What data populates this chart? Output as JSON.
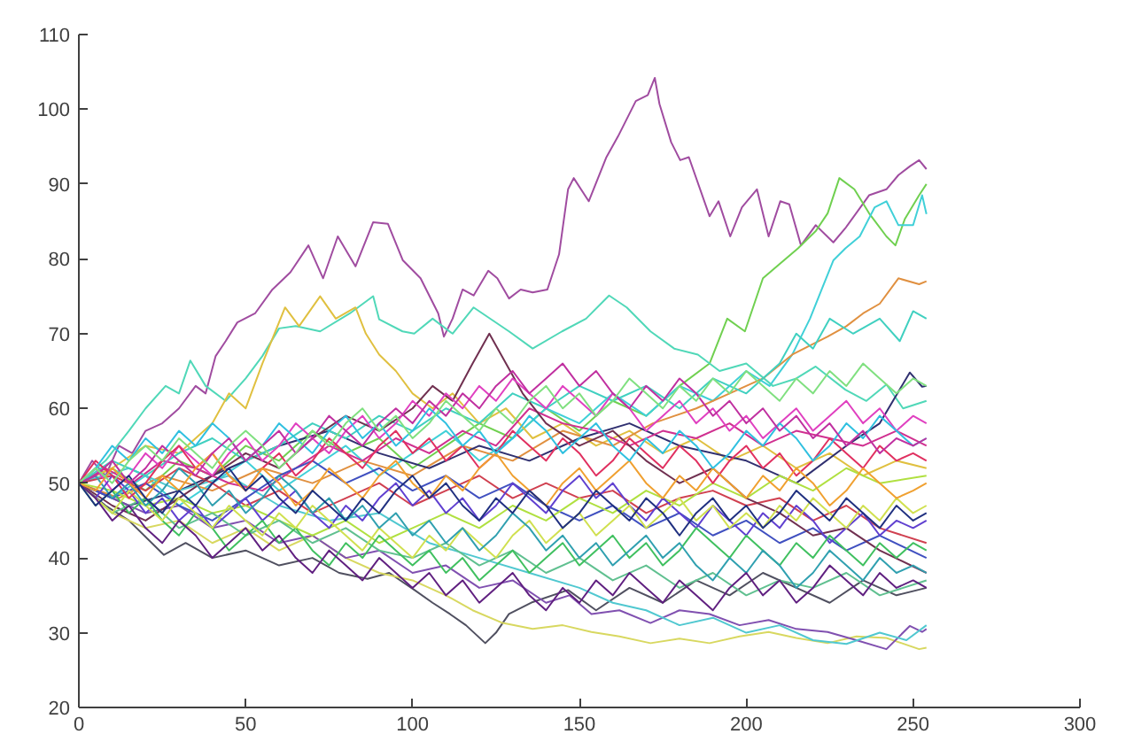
{
  "chart_data": {
    "type": "line",
    "xlim": [
      0,
      300
    ],
    "ylim": [
      20,
      110
    ],
    "xticks": [
      0,
      50,
      100,
      150,
      200,
      250,
      300
    ],
    "yticks": [
      20,
      30,
      40,
      50,
      60,
      70,
      80,
      90,
      100,
      110
    ],
    "x": [
      0,
      5,
      10,
      15,
      20,
      25,
      30,
      35,
      40,
      45,
      50,
      55,
      60,
      65,
      70,
      75,
      80,
      85,
      90,
      95,
      100,
      105,
      110,
      115,
      120,
      125,
      130,
      135,
      140,
      145,
      150,
      155,
      160,
      165,
      170,
      175,
      180,
      185,
      190,
      195,
      200,
      205,
      210,
      215,
      220,
      225,
      230,
      235,
      240,
      245,
      250,
      254
    ],
    "series": [
      {
        "color": "#a04ca0",
        "x": [
          0,
          4,
          8,
          12,
          16,
          20,
          25,
          30,
          35,
          38,
          41,
          44,
          47.5,
          52.8,
          58,
          63.4,
          68.8,
          73.2,
          77.6,
          82.9,
          88.2,
          92.6,
          97.1,
          102.4,
          107.7,
          109.4,
          112,
          115,
          118.3,
          122.7,
          125.4,
          128.9,
          132.4,
          136,
          140.4,
          143.9,
          146.6,
          148.3,
          152.8,
          158.1,
          161.6,
          166.9,
          170.5,
          172.6,
          174,
          177.5,
          180.2,
          182.8,
          189,
          191.7,
          195.2,
          198.7,
          203.2,
          206.7,
          210.2,
          212.9,
          216.4,
          220.8,
          226.1,
          229.7,
          236.8,
          242,
          245.6,
          249.1,
          251.8,
          254
        ],
        "values": [
          50,
          53,
          51,
          55,
          54,
          57,
          58,
          60,
          63,
          62,
          67,
          69,
          71.5,
          72.7,
          75.9,
          78.2,
          81.8,
          77.4,
          83,
          79,
          84.9,
          84.7,
          79.8,
          77.4,
          72.7,
          69.6,
          72,
          75.9,
          75.1,
          78.4,
          77.4,
          74.7,
          75.9,
          75.5,
          75.9,
          80.6,
          89.3,
          90.8,
          87.7,
          93.6,
          96.4,
          101.1,
          101.9,
          104.2,
          100.7,
          95.6,
          93.2,
          93.6,
          85.7,
          87.7,
          83,
          86.9,
          89.3,
          83,
          87.7,
          87.3,
          81.8,
          84.5,
          82.2,
          84.1,
          88.5,
          89.3,
          91.2,
          92.4,
          93.2,
          92
        ]
      },
      {
        "color": "#70d050",
        "x": [
          0,
          10,
          20,
          30,
          40,
          50,
          60,
          70,
          80,
          90,
          100,
          110,
          120,
          130,
          140,
          150,
          160,
          170,
          180,
          189,
          194.3,
          199.6,
          205,
          210.2,
          215.5,
          220.8,
          224.4,
          227.9,
          232.4,
          236.8,
          242,
          244.7,
          247.5,
          251.8,
          254
        ],
        "values": [
          50,
          52,
          49,
          53,
          51,
          55,
          53,
          57,
          54,
          56,
          52,
          55,
          58,
          56,
          60,
          57,
          61,
          59,
          63,
          66,
          72,
          70.3,
          77.4,
          79.4,
          81.4,
          83.7,
          86.1,
          90.8,
          89.3,
          86.1,
          83,
          81.8,
          85.3,
          88.5,
          90
        ]
      },
      {
        "color": "#40d0d8",
        "x": [
          0,
          10,
          20,
          30,
          40,
          50,
          60,
          70,
          80,
          90,
          100,
          110,
          120,
          130,
          140,
          150,
          160,
          170,
          180,
          190,
          200,
          207,
          213.8,
          219.1,
          222.6,
          226.1,
          229.7,
          234,
          238.5,
          242,
          245.6,
          250,
          252.7,
          254
        ],
        "values": [
          50,
          48,
          51,
          47,
          50,
          53,
          49,
          52,
          55,
          51,
          54,
          57,
          53,
          56,
          60,
          58,
          62,
          59,
          63,
          61,
          65,
          63,
          67.2,
          72,
          75.9,
          79.8,
          81.4,
          83,
          86.9,
          87.7,
          84.5,
          84.5,
          88.5,
          86
        ]
      },
      {
        "color": "#50d8b8",
        "x": [
          0,
          8,
          15,
          20,
          26,
          30,
          33.4,
          38,
          44,
          50,
          55,
          60,
          65,
          72.3,
          81.2,
          88.2,
          90,
          97,
          100.5,
          106,
          112,
          118.3,
          123.6,
          128.9,
          136,
          144.8,
          152,
          158.9,
          164.2,
          171.3,
          178.4,
          185.5,
          192,
          200,
          208,
          215,
          220.8,
          229.7,
          236,
          242,
          247,
          254
        ],
        "values": [
          50,
          53,
          57,
          60,
          63,
          62,
          66.4,
          63,
          61,
          64,
          67,
          70.7,
          71,
          70.3,
          72.7,
          75,
          71.9,
          70.3,
          70,
          72,
          70,
          73.5,
          71.9,
          70.3,
          68,
          70.3,
          72,
          75.1,
          73.5,
          70.3,
          68,
          67.2,
          65,
          66,
          63,
          64,
          65.6,
          62.5,
          61,
          63.2,
          60,
          61
        ]
      },
      {
        "color": "#e0c040",
        "x": [
          0,
          10,
          20,
          30,
          40,
          45,
          50,
          55,
          61.8,
          66,
          72.3,
          77,
          82.9,
          86,
          90,
          95,
          100,
          106,
          112,
          120,
          128,
          136,
          145,
          155,
          165,
          175,
          185,
          195,
          205,
          215,
          225,
          235,
          245,
          254
        ],
        "values": [
          50,
          52,
          55,
          54,
          58,
          62,
          60,
          66,
          73.5,
          71,
          75,
          72,
          73.5,
          70,
          67.2,
          65,
          62,
          60,
          62,
          58,
          60,
          56,
          58,
          55,
          57,
          54,
          56,
          53,
          55,
          52,
          54,
          51,
          53,
          52
        ]
      },
      {
        "color": "#e09040",
        "x": [
          0,
          12,
          25,
          40,
          55,
          70,
          85,
          100,
          115,
          130,
          145,
          160,
          172,
          185,
          195,
          205,
          213.8,
          224.4,
          230,
          235,
          240,
          245.6,
          251.8,
          254
        ],
        "values": [
          50,
          48,
          51,
          49,
          52,
          50,
          53,
          51,
          55,
          53,
          57,
          55,
          58,
          60,
          62,
          64,
          67.2,
          69.6,
          71,
          72.7,
          74,
          77.4,
          76.6,
          77
        ]
      },
      {
        "color": "#303070",
        "x": [
          0,
          15,
          30,
          45,
          60,
          75,
          90,
          105,
          120,
          135,
          150,
          165,
          180,
          200,
          215,
          230,
          240,
          249,
          252.7,
          254
        ],
        "values": [
          50,
          47,
          49,
          52,
          55,
          57,
          54,
          52,
          55,
          53,
          56,
          58,
          55,
          53,
          50,
          55,
          58,
          64.8,
          62.9,
          63
        ]
      },
      {
        "color": "#505060",
        "x": [
          0,
          8,
          15,
          25.5,
          32,
          40,
          50,
          60,
          70,
          78,
          86.5,
          93,
          100.6,
          106,
          111.2,
          116,
          121.8,
          125,
          128.9,
          136,
          146.6,
          155,
          165,
          175,
          185,
          195,
          205,
          215,
          225,
          235,
          245,
          254
        ],
        "values": [
          50,
          47,
          45,
          40.4,
          42,
          40,
          41,
          39,
          40,
          38,
          37.2,
          38,
          35.7,
          34,
          32.5,
          31,
          28.6,
          30,
          32.5,
          34.1,
          35.7,
          33,
          36,
          34,
          37,
          35,
          38,
          36,
          34,
          37,
          35,
          36
        ]
      },
      {
        "color": "#d8d860",
        "x": [
          0,
          10,
          20,
          30,
          40,
          50,
          60,
          70,
          80,
          90,
          100,
          110,
          118,
          127,
          136,
          145,
          153.6,
          162,
          171.3,
          180,
          189,
          198,
          206.7,
          215,
          224.4,
          233,
          242,
          251.8,
          254
        ],
        "values": [
          50,
          46,
          44,
          45,
          42,
          44,
          41,
          43,
          40,
          38,
          37,
          35,
          33,
          31.3,
          30.5,
          31,
          30.1,
          29.5,
          28.6,
          29.2,
          28.6,
          29.5,
          30.1,
          29.3,
          28.6,
          29.5,
          29.3,
          27.8,
          28
        ]
      },
      {
        "color": "#8050b0",
        "x": [
          0,
          10,
          20,
          30,
          40,
          50,
          60,
          70,
          80,
          90,
          100,
          110,
          120,
          130,
          140,
          147,
          153.6,
          162,
          171.3,
          180,
          189,
          198,
          206.7,
          215,
          224.4,
          233,
          242,
          249,
          252.7,
          254
        ],
        "values": [
          50,
          48,
          46,
          47,
          44,
          45,
          42,
          43,
          40,
          41,
          38,
          39,
          36,
          37,
          34,
          35,
          32.5,
          33,
          31.3,
          33,
          32.5,
          31,
          31.7,
          30.5,
          30.1,
          29,
          27.8,
          30.9,
          30.1,
          30.5
        ]
      },
      {
        "color": "#50c8d0",
        "x": [
          0,
          15,
          30,
          45,
          60,
          75,
          90,
          105,
          120,
          135,
          150,
          160,
          170,
          180,
          190,
          200,
          210,
          220,
          230,
          240,
          248,
          254
        ],
        "values": [
          50,
          52,
          49,
          51,
          47,
          45,
          46,
          42,
          40,
          38,
          36,
          34,
          33,
          31,
          32,
          30,
          31,
          29,
          28.5,
          30,
          29,
          31
        ]
      },
      {
        "color": "#d03090",
        "x": [
          0,
          8,
          16,
          25,
          35,
          45,
          55,
          65,
          75,
          85,
          95,
          105,
          115,
          125,
          135,
          145,
          155,
          165,
          175,
          185,
          195,
          205,
          215,
          225,
          235,
          245,
          254
        ],
        "values": [
          50,
          52,
          50,
          53,
          52,
          50,
          49,
          52,
          55,
          53,
          56,
          54,
          57,
          55,
          60,
          58,
          57,
          55,
          57,
          56,
          58,
          55,
          57,
          56,
          55,
          57,
          55
        ]
      },
      {
        "color": "#d04050",
        "x": [
          0,
          10,
          20,
          30,
          40,
          50,
          60,
          70,
          80,
          90,
          100,
          110,
          120,
          130,
          140,
          150,
          160,
          170,
          180,
          190,
          200,
          210,
          220,
          230,
          240,
          254
        ],
        "values": [
          50,
          51,
          49,
          52,
          50,
          47,
          49,
          46,
          48,
          50,
          47,
          49,
          51,
          48,
          50,
          48,
          49,
          46,
          48,
          49,
          47,
          48,
          45,
          47,
          44,
          42
        ]
      },
      {
        "color": "#4050c0",
        "x": [
          0,
          10,
          20,
          30,
          40,
          50,
          60,
          70,
          80,
          90,
          100,
          110,
          120,
          130,
          140,
          150,
          160,
          170,
          180,
          190,
          200,
          210,
          220,
          230,
          240,
          254
        ],
        "values": [
          50,
          48,
          50,
          47,
          45,
          48,
          51,
          53,
          50,
          52,
          49,
          51,
          48,
          50,
          47,
          45,
          47,
          44,
          46,
          43,
          45,
          42,
          44,
          41,
          43,
          40
        ]
      },
      {
        "color": "#b0e040",
        "x": [
          0,
          10,
          20,
          30,
          40,
          50,
          60,
          70,
          80,
          90,
          100,
          110,
          120,
          130,
          140,
          150,
          160,
          170,
          180,
          190,
          200,
          210,
          220,
          230,
          240,
          254
        ],
        "values": [
          50,
          49,
          47,
          48,
          46,
          47,
          45,
          43,
          45,
          42,
          44,
          46,
          44,
          47,
          45,
          48,
          46,
          49,
          47,
          50,
          48,
          51,
          49,
          52,
          50,
          51
        ]
      },
      {
        "color": "#40d0c0",
        "x": [
          0,
          10,
          20,
          30,
          40,
          50,
          60,
          70,
          80,
          90,
          100,
          110,
          120,
          130,
          140,
          150,
          160,
          170,
          180,
          190,
          200,
          210,
          215,
          220,
          225,
          232,
          240,
          246,
          250,
          254
        ],
        "values": [
          50,
          53,
          51,
          54,
          56,
          53,
          55,
          58,
          56,
          59,
          57,
          60,
          58,
          62,
          60,
          63,
          61,
          63,
          60,
          64,
          62,
          66,
          70,
          68,
          72,
          70,
          72,
          69,
          73,
          72
        ]
      },
      {
        "color": "#703050",
        "x": [
          0,
          10,
          20,
          30,
          40,
          50,
          60,
          70,
          80,
          90,
          100,
          106,
          112,
          118,
          123,
          128,
          133,
          140,
          150,
          160,
          170,
          180,
          190,
          200,
          210,
          220,
          230,
          240,
          254
        ],
        "values": [
          50,
          47,
          45,
          48,
          51,
          54,
          52,
          56,
          59,
          57,
          60,
          63,
          61,
          66,
          70,
          66,
          62,
          58,
          55,
          57,
          53,
          50,
          52,
          48,
          46,
          43,
          44,
          41,
          38
        ]
      },
      {
        "color": "#60c090",
        "x": [
          0,
          10,
          20,
          30,
          40,
          50,
          60,
          70,
          80,
          90,
          100,
          110,
          120,
          130,
          140,
          150,
          160,
          170,
          180,
          190,
          200,
          210,
          220,
          230,
          240,
          254
        ],
        "values": [
          50,
          46,
          48,
          44,
          46,
          43,
          45,
          42,
          44,
          41,
          40,
          42,
          39,
          41,
          38,
          40,
          37,
          39,
          36,
          38,
          35,
          37,
          36,
          38,
          35,
          37
        ]
      },
      {
        "color": "#e040c0",
        "values": [
          50,
          52,
          49,
          51,
          54,
          52,
          55,
          53,
          51,
          54,
          56,
          53,
          55,
          58,
          56,
          54,
          57,
          59,
          56,
          58,
          61,
          59,
          62,
          60,
          63,
          61,
          64,
          62,
          60,
          63,
          61,
          59,
          62,
          60,
          57,
          59,
          61,
          58,
          60,
          57,
          59,
          56,
          58,
          60,
          57,
          59,
          61,
          58,
          60,
          57,
          59,
          58
        ]
      },
      {
        "color": "#6040d0",
        "values": [
          50,
          48,
          51,
          49,
          46,
          48,
          45,
          47,
          44,
          46,
          48,
          45,
          47,
          49,
          46,
          44,
          47,
          45,
          48,
          50,
          47,
          49,
          46,
          48,
          45,
          47,
          50,
          48,
          46,
          49,
          51,
          48,
          50,
          47,
          45,
          48,
          46,
          44,
          47,
          45,
          43,
          46,
          44,
          47,
          45,
          42,
          44,
          46,
          43,
          45,
          44,
          45
        ]
      },
      {
        "color": "#40c060",
        "values": [
          50,
          47,
          49,
          46,
          48,
          45,
          43,
          46,
          44,
          41,
          43,
          45,
          42,
          44,
          41,
          39,
          42,
          40,
          43,
          41,
          39,
          41,
          38,
          40,
          37,
          39,
          41,
          38,
          40,
          42,
          39,
          41,
          43,
          40,
          42,
          39,
          41,
          44,
          42,
          40,
          43,
          41,
          39,
          42,
          40,
          43,
          41,
          39,
          42,
          40,
          42,
          41
        ]
      },
      {
        "color": "#d0e050",
        "values": [
          50,
          48,
          46,
          49,
          47,
          45,
          48,
          46,
          44,
          47,
          45,
          43,
          46,
          44,
          47,
          45,
          43,
          41,
          44,
          42,
          40,
          43,
          41,
          44,
          42,
          40,
          43,
          45,
          42,
          44,
          46,
          43,
          45,
          47,
          44,
          46,
          48,
          45,
          47,
          44,
          46,
          44,
          47,
          45,
          48,
          46,
          44,
          47,
          45,
          48,
          46,
          47
        ]
      },
      {
        "color": "#e03060",
        "values": [
          50,
          53,
          51,
          48,
          50,
          53,
          55,
          52,
          54,
          51,
          49,
          52,
          54,
          51,
          53,
          56,
          54,
          52,
          55,
          57,
          54,
          56,
          53,
          55,
          52,
          54,
          57,
          55,
          53,
          56,
          54,
          51,
          53,
          56,
          54,
          52,
          55,
          53,
          50,
          53,
          55,
          52,
          54,
          51,
          53,
          56,
          54,
          52,
          55,
          53,
          54,
          53
        ]
      },
      {
        "color": "#30a0b0",
        "values": [
          50,
          51,
          48,
          50,
          47,
          49,
          52,
          50,
          47,
          49,
          46,
          48,
          51,
          49,
          46,
          48,
          45,
          47,
          44,
          46,
          43,
          45,
          42,
          44,
          41,
          43,
          46,
          44,
          41,
          43,
          40,
          42,
          39,
          41,
          43,
          40,
          42,
          39,
          37,
          40,
          38,
          41,
          39,
          36,
          38,
          41,
          39,
          37,
          40,
          38,
          39,
          38
        ]
      },
      {
        "color": "#602080",
        "values": [
          50,
          48,
          45,
          47,
          44,
          42,
          45,
          43,
          40,
          42,
          44,
          41,
          43,
          40,
          38,
          41,
          39,
          37,
          40,
          38,
          36,
          38,
          35,
          37,
          34,
          36,
          38,
          35,
          33,
          36,
          34,
          37,
          35,
          38,
          36,
          34,
          37,
          35,
          33,
          36,
          38,
          35,
          37,
          34,
          36,
          39,
          37,
          35,
          38,
          36,
          37,
          36
        ]
      },
      {
        "color": "#f0a030",
        "values": [
          50,
          49,
          52,
          50,
          48,
          51,
          49,
          52,
          54,
          51,
          49,
          52,
          50,
          47,
          49,
          52,
          50,
          48,
          51,
          53,
          50,
          48,
          51,
          49,
          52,
          54,
          51,
          49,
          47,
          50,
          52,
          49,
          51,
          53,
          50,
          48,
          51,
          49,
          52,
          50,
          48,
          51,
          49,
          52,
          50,
          47,
          49,
          52,
          50,
          48,
          49,
          50
        ]
      },
      {
        "color": "#30c0e0",
        "values": [
          50,
          52,
          55,
          53,
          56,
          54,
          57,
          55,
          58,
          56,
          53,
          55,
          58,
          56,
          54,
          57,
          59,
          56,
          58,
          55,
          57,
          60,
          58,
          55,
          57,
          54,
          56,
          59,
          57,
          54,
          56,
          58,
          55,
          53,
          56,
          54,
          57,
          55,
          52,
          54,
          57,
          55,
          58,
          56,
          53,
          55,
          58,
          56,
          59,
          57,
          55,
          56
        ]
      },
      {
        "color": "#203080",
        "values": [
          50,
          47,
          49,
          51,
          48,
          46,
          49,
          47,
          50,
          52,
          49,
          51,
          48,
          46,
          49,
          47,
          45,
          48,
          46,
          49,
          51,
          48,
          50,
          47,
          45,
          48,
          46,
          49,
          47,
          44,
          46,
          49,
          47,
          45,
          48,
          46,
          43,
          46,
          48,
          45,
          47,
          44,
          46,
          49,
          47,
          45,
          48,
          46,
          44,
          47,
          45,
          46
        ]
      },
      {
        "color": "#c030a0",
        "values": [
          50,
          51,
          53,
          50,
          52,
          55,
          53,
          51,
          54,
          56,
          53,
          55,
          57,
          54,
          56,
          59,
          57,
          55,
          58,
          60,
          58,
          61,
          59,
          62,
          60,
          63,
          65,
          62,
          64,
          66,
          63,
          65,
          62,
          60,
          63,
          61,
          64,
          62,
          59,
          61,
          58,
          60,
          57,
          59,
          56,
          58,
          55,
          57,
          54,
          56,
          55,
          56
        ]
      },
      {
        "color": "#80e080",
        "values": [
          50,
          52,
          50,
          53,
          55,
          53,
          56,
          54,
          52,
          55,
          57,
          55,
          52,
          54,
          57,
          55,
          58,
          60,
          57,
          59,
          56,
          58,
          61,
          59,
          57,
          60,
          58,
          61,
          63,
          60,
          62,
          59,
          61,
          64,
          62,
          60,
          63,
          61,
          64,
          62,
          65,
          63,
          61,
          64,
          62,
          65,
          63,
          66,
          64,
          62,
          64,
          63
        ]
      }
    ]
  }
}
